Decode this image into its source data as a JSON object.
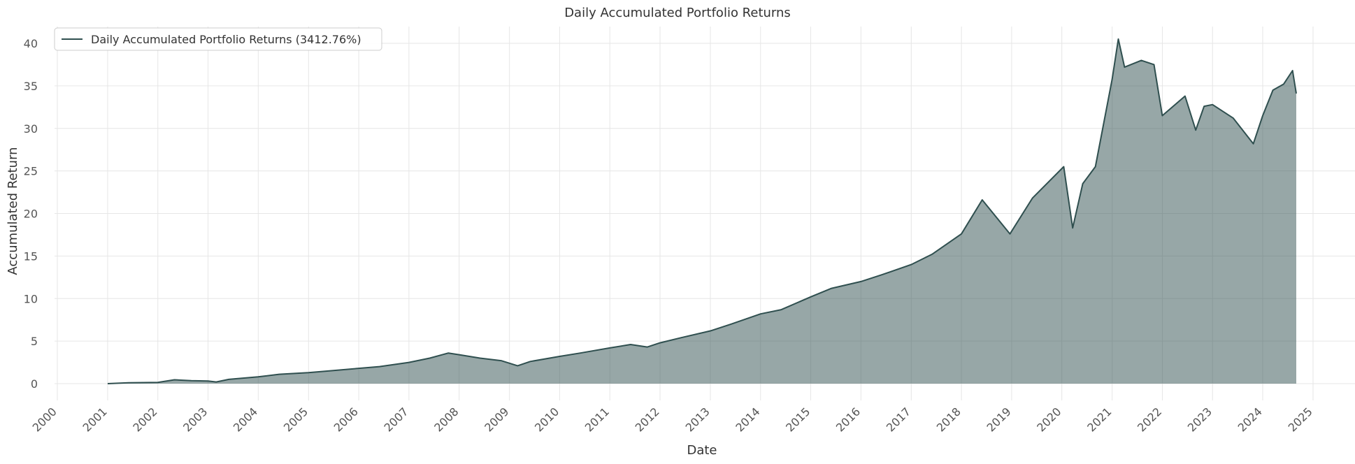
{
  "chart_data": {
    "type": "area",
    "title": "Daily Accumulated Portfolio Returns",
    "xlabel": "Date",
    "ylabel": "Accumulated Return",
    "xlim": [
      "2000-01-01",
      "2025-01-01"
    ],
    "ylim": [
      0,
      40
    ],
    "x_ticks": [
      "2000",
      "2001",
      "2002",
      "2003",
      "2004",
      "2005",
      "2006",
      "2007",
      "2008",
      "2009",
      "2010",
      "2011",
      "2012",
      "2013",
      "2014",
      "2015",
      "2016",
      "2017",
      "2018",
      "2019",
      "2020",
      "2021",
      "2022",
      "2023",
      "2024",
      "2025"
    ],
    "y_ticks": [
      "0",
      "5",
      "10",
      "15",
      "20",
      "25",
      "30",
      "35",
      "40"
    ],
    "grid": true,
    "legend": {
      "placement": "top-left",
      "entries": [
        "Daily Accumulated Portfolio Returns (3412.76%)"
      ]
    },
    "series": [
      {
        "name": "Daily Accumulated Portfolio Returns (3412.76%)",
        "color": "#2f4f4f",
        "fill_color": "#2f4f4f",
        "fill_opacity": 0.5,
        "x": [
          "2001-01-01",
          "2001-06-01",
          "2002-01-01",
          "2002-05-01",
          "2002-09-01",
          "2003-01-01",
          "2003-03-01",
          "2003-06-01",
          "2004-01-01",
          "2004-06-01",
          "2005-01-01",
          "2005-06-01",
          "2006-01-01",
          "2006-06-01",
          "2007-01-01",
          "2007-06-01",
          "2007-10-15",
          "2008-01-01",
          "2008-06-01",
          "2008-11-01",
          "2009-03-01",
          "2009-06-01",
          "2010-01-01",
          "2010-06-01",
          "2011-01-01",
          "2011-06-01",
          "2011-10-01",
          "2012-01-01",
          "2012-06-01",
          "2013-01-01",
          "2013-06-01",
          "2014-01-01",
          "2014-06-01",
          "2015-01-01",
          "2015-06-01",
          "2016-01-01",
          "2016-06-01",
          "2017-01-01",
          "2017-06-01",
          "2018-01-01",
          "2018-06-01",
          "2018-12-20",
          "2019-06-01",
          "2020-01-15",
          "2020-03-20",
          "2020-06-01",
          "2020-09-01",
          "2021-01-01",
          "2021-02-15",
          "2021-04-01",
          "2021-08-01",
          "2021-11-01",
          "2022-01-01",
          "2022-06-15",
          "2022-09-01",
          "2022-11-01",
          "2023-01-01",
          "2023-06-01",
          "2023-10-25",
          "2024-01-01",
          "2024-03-15",
          "2024-06-01",
          "2024-08-05",
          "2024-09-01"
        ],
        "y": [
          0.0,
          0.1,
          0.15,
          0.45,
          0.35,
          0.3,
          0.2,
          0.5,
          0.8,
          1.1,
          1.3,
          1.5,
          1.8,
          2.0,
          2.5,
          3.0,
          3.6,
          3.4,
          3.0,
          2.7,
          2.1,
          2.6,
          3.2,
          3.6,
          4.2,
          4.6,
          4.3,
          4.8,
          5.4,
          6.2,
          7.0,
          8.2,
          8.7,
          10.2,
          11.2,
          12.0,
          12.8,
          14.0,
          15.2,
          17.6,
          21.6,
          17.6,
          21.8,
          25.5,
          18.3,
          23.5,
          25.5,
          35.8,
          40.5,
          37.2,
          38.0,
          37.5,
          31.5,
          33.8,
          29.8,
          32.6,
          32.8,
          31.2,
          28.2,
          31.5,
          34.5,
          35.2,
          36.8,
          34.1
        ]
      }
    ]
  }
}
